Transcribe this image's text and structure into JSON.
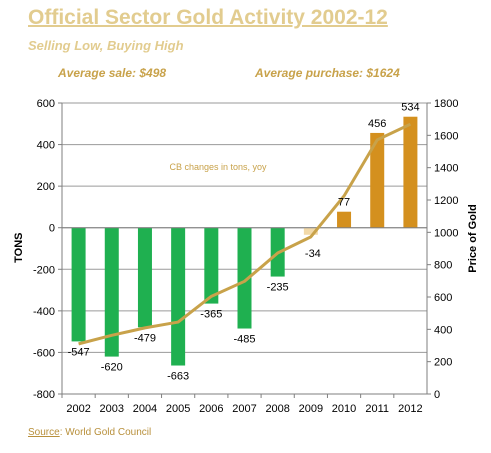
{
  "header": {
    "title": "Official Sector Gold Activity 2002-12",
    "subtitle": "Selling Low, Buying High",
    "average_sale": "Average sale: $498",
    "average_purchase": "Average purchase: $1624"
  },
  "footer": {
    "source_label": "Source",
    "source_text": ": World Gold Council"
  },
  "colors": {
    "negative_bar": "#1fb050",
    "positive_bar": "#d4901e",
    "small_positive_bar": "#f2d9a8",
    "price_line": "#c8a24a",
    "gridline": "#9a9a9a"
  },
  "chart_data": {
    "type": "bar",
    "categories": [
      "2002",
      "2003",
      "2004",
      "2005",
      "2006",
      "2007",
      "2008",
      "2009",
      "2010",
      "2011",
      "2012"
    ],
    "series": [
      {
        "values": [
          -547,
          -620,
          -479,
          -663,
          -365,
          -485,
          -235,
          -34,
          77,
          456,
          534
        ]
      },
      {
        "type": "line",
        "values": [
          310,
          363,
          409,
          445,
          604,
          697,
          872,
          972,
          1225,
          1572,
          1669
        ]
      }
    ],
    "ylabel": "TONS",
    "y2label": "Price of Gold",
    "ylim": [
      -800,
      600
    ],
    "y2lim": [
      0,
      1800
    ],
    "yticks": [
      "600",
      "400",
      "200",
      "0",
      "-200",
      "-400",
      "-600",
      "-800"
    ],
    "y2ticks": [
      "1800",
      "1600",
      "1400",
      "1200",
      "1000",
      "800",
      "600",
      "400",
      "200",
      "0"
    ],
    "data_labels": [
      "-547",
      "-620",
      "-479",
      "-663",
      "-365",
      "-485",
      "-235",
      "-34",
      "77",
      "456",
      "534"
    ],
    "annotation": "CB changes in tons, yoy",
    "grid": true,
    "legend": "none"
  }
}
